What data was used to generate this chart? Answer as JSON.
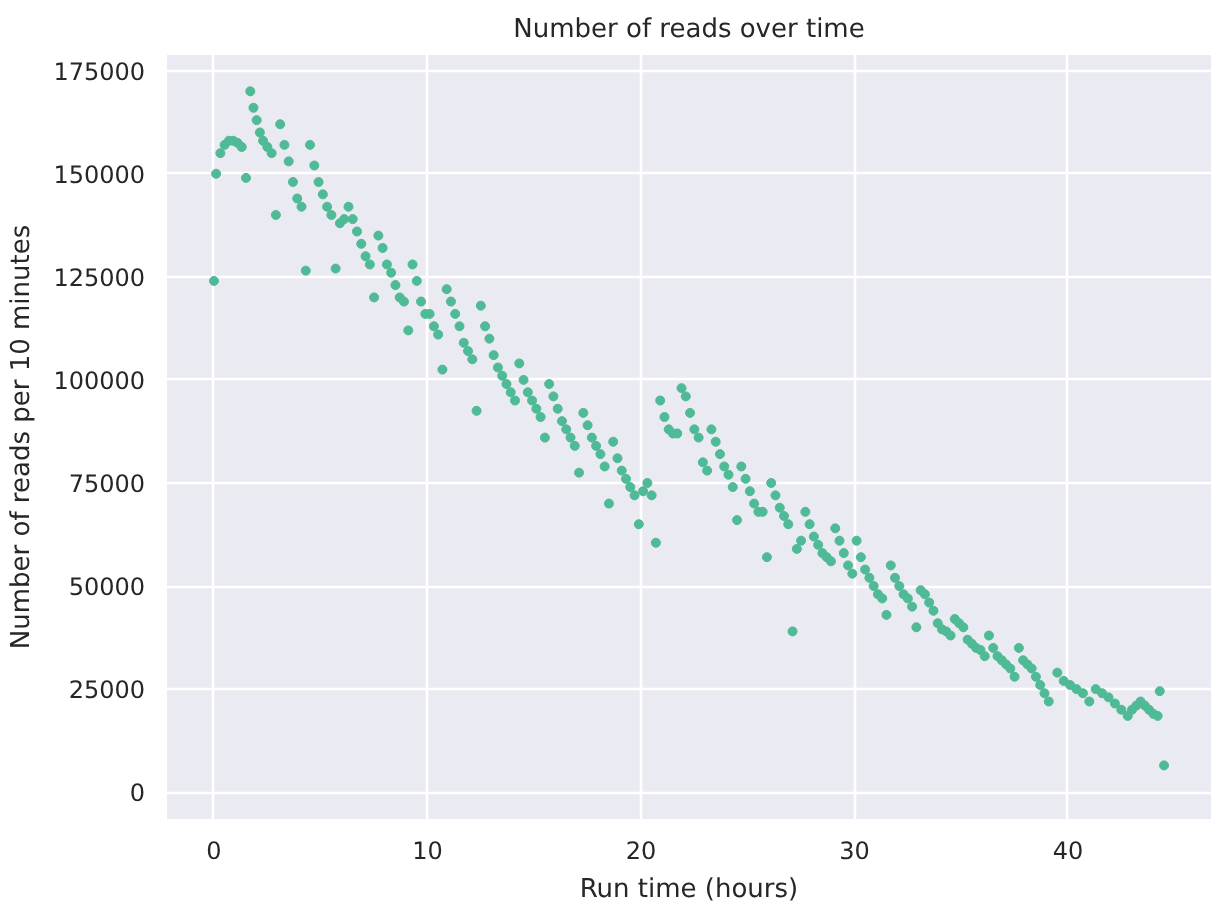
{
  "chart_data": {
    "type": "scatter",
    "title": "Number of reads over time",
    "xlabel": "Run time (hours)",
    "ylabel": "Number of reads per 10 minutes",
    "xlim": [
      -2.2,
      46.7
    ],
    "ylim": [
      -6500,
      178800
    ],
    "xticks": [
      0,
      10,
      20,
      30,
      40
    ],
    "yticks": [
      0,
      25000,
      50000,
      75000,
      100000,
      125000,
      150000,
      175000
    ],
    "grid": true,
    "marker": "circle",
    "series": [
      {
        "color": "#4fba96",
        "x": [
          0,
          0.1,
          0.3,
          0.5,
          0.7,
          0.9,
          1.1,
          1.3,
          1.5,
          1.7,
          1.85,
          2.0,
          2.15,
          2.3,
          2.5,
          2.7,
          2.9,
          3.1,
          3.3,
          3.5,
          3.7,
          3.9,
          4.1,
          4.3,
          4.5,
          4.7,
          4.9,
          5.1,
          5.3,
          5.5,
          5.7,
          5.9,
          6.1,
          6.3,
          6.5,
          6.7,
          6.9,
          7.1,
          7.3,
          7.5,
          7.7,
          7.9,
          8.1,
          8.3,
          8.5,
          8.7,
          8.9,
          9.1,
          9.3,
          9.5,
          9.7,
          9.9,
          10.1,
          10.3,
          10.5,
          10.7,
          10.9,
          11.1,
          11.3,
          11.5,
          11.7,
          11.9,
          12.1,
          12.3,
          12.5,
          12.7,
          12.9,
          13.1,
          13.3,
          13.5,
          13.7,
          13.9,
          14.1,
          14.3,
          14.5,
          14.7,
          14.9,
          15.1,
          15.3,
          15.5,
          15.7,
          15.9,
          16.1,
          16.3,
          16.5,
          16.7,
          16.9,
          17.1,
          17.3,
          17.5,
          17.7,
          17.9,
          18.1,
          18.3,
          18.5,
          18.7,
          18.9,
          19.1,
          19.3,
          19.5,
          19.7,
          19.9,
          20.1,
          20.3,
          20.5,
          20.7,
          20.9,
          21.1,
          21.3,
          21.5,
          21.7,
          21.9,
          22.1,
          22.3,
          22.5,
          22.7,
          22.9,
          23.1,
          23.3,
          23.5,
          23.7,
          23.9,
          24.1,
          24.3,
          24.5,
          24.7,
          24.9,
          25.1,
          25.3,
          25.5,
          25.7,
          25.9,
          26.1,
          26.3,
          26.5,
          26.7,
          26.9,
          27.1,
          27.3,
          27.5,
          27.7,
          27.9,
          28.1,
          28.3,
          28.5,
          28.7,
          28.9,
          29.1,
          29.3,
          29.5,
          29.7,
          29.9,
          30.1,
          30.3,
          30.5,
          30.7,
          30.9,
          31.1,
          31.3,
          31.5,
          31.7,
          31.9,
          32.1,
          32.3,
          32.5,
          32.7,
          32.9,
          33.1,
          33.3,
          33.5,
          33.7,
          33.9,
          34.1,
          34.3,
          34.5,
          34.7,
          34.9,
          35.1,
          35.3,
          35.5,
          35.7,
          35.9,
          36.1,
          36.3,
          36.5,
          36.7,
          36.9,
          37.1,
          37.3,
          37.5,
          37.7,
          37.9,
          38.1,
          38.3,
          38.5,
          38.7,
          38.9,
          39.1,
          39.5,
          39.8,
          40.1,
          40.4,
          40.7,
          41.0,
          41.3,
          41.6,
          41.9,
          42.2,
          42.5,
          42.8,
          43.0,
          43.2,
          43.4,
          43.6,
          43.8,
          44.0,
          44.2,
          44.3,
          44.5
        ],
        "values": [
          124000,
          150000,
          155000,
          157000,
          158000,
          158000,
          157500,
          156500,
          149000,
          170000,
          166000,
          163000,
          160000,
          158000,
          156500,
          155000,
          140000,
          162000,
          157000,
          153000,
          148000,
          144000,
          142000,
          126500,
          157000,
          152000,
          148000,
          145000,
          142000,
          140000,
          127000,
          138000,
          139000,
          142000,
          139000,
          136000,
          133000,
          130000,
          128000,
          120000,
          135000,
          132000,
          128000,
          126000,
          123000,
          120000,
          119000,
          112000,
          128000,
          124000,
          119000,
          116000,
          116000,
          113000,
          111000,
          102500,
          122000,
          119000,
          116000,
          113000,
          109000,
          107000,
          105000,
          92500,
          118000,
          113000,
          110000,
          106000,
          103000,
          101000,
          99000,
          97000,
          95000,
          104000,
          100000,
          97000,
          95000,
          93000,
          91000,
          86000,
          99000,
          96000,
          93000,
          90000,
          88000,
          86000,
          84000,
          77500,
          92000,
          89000,
          86000,
          84000,
          82000,
          79000,
          70000,
          85000,
          81000,
          78000,
          76000,
          74000,
          72000,
          65000,
          73000,
          75000,
          72000,
          60500,
          95000,
          91000,
          88000,
          87000,
          87000,
          98000,
          96000,
          92000,
          88000,
          86000,
          80000,
          78000,
          88000,
          85000,
          82000,
          79000,
          77000,
          74000,
          66000,
          79000,
          76000,
          73000,
          70000,
          68000,
          68000,
          57000,
          75000,
          72000,
          69000,
          67000,
          65000,
          39000,
          59000,
          61000,
          68000,
          65000,
          62000,
          60000,
          58000,
          57000,
          56000,
          64000,
          61000,
          58000,
          55000,
          53000,
          61000,
          57000,
          54000,
          52000,
          50000,
          48000,
          47000,
          43000,
          55000,
          52000,
          50000,
          48000,
          47000,
          45000,
          40000,
          49000,
          48000,
          46000,
          44000,
          41000,
          39500,
          39000,
          38000,
          42000,
          41000,
          40000,
          37000,
          36000,
          35000,
          34500,
          33000,
          38000,
          35000,
          33000,
          32000,
          31000,
          30000,
          28000,
          35000,
          32000,
          31000,
          30000,
          28000,
          26000,
          24000,
          22000,
          29000,
          27000,
          26000,
          25000,
          24000,
          22000,
          25000,
          24000,
          23000,
          21500,
          20000,
          18500,
          20000,
          21000,
          22000,
          21000,
          20000,
          19000,
          18500,
          24500,
          6500
        ]
      }
    ]
  }
}
